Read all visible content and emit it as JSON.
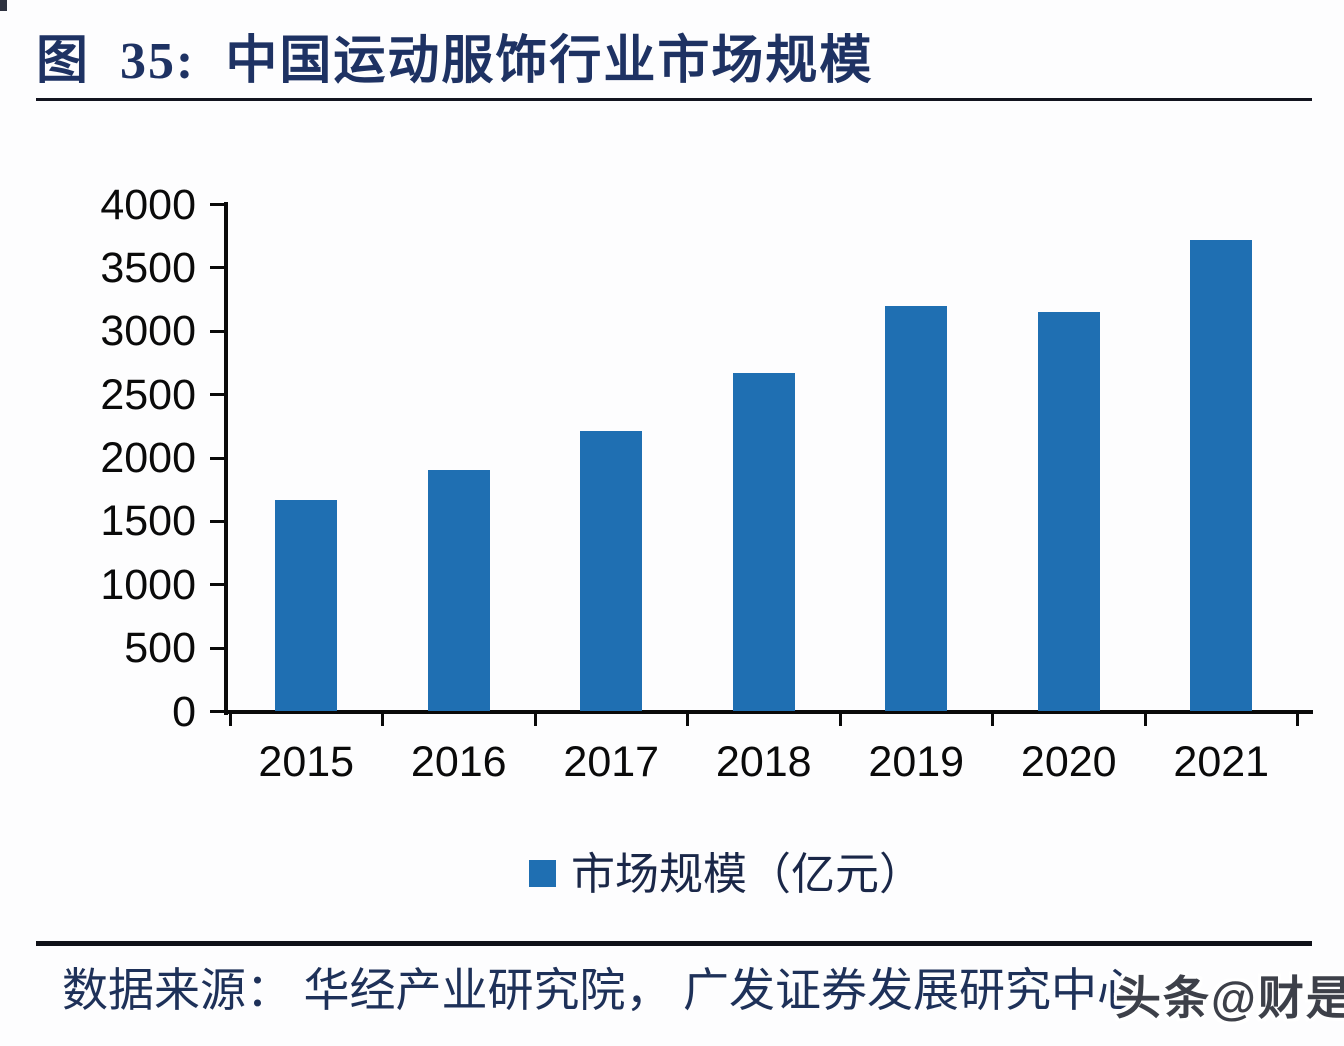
{
  "header": {
    "title": "图  35:  中国运动服饰行业市场规模"
  },
  "legend": {
    "label": "市场规模（亿元）"
  },
  "footer": {
    "source": "数据来源： 华经产业研究院， 广发证券发展研究中心",
    "watermark": "头条@财是"
  },
  "colors": {
    "bar": "#1f6fb2",
    "title_navy": "#1e3263",
    "axis": "#0a0a0a",
    "watermark_gray": "#3d4049"
  },
  "chart_data": {
    "type": "bar",
    "title": "中国运动服饰行业市场规模",
    "categories": [
      "2015",
      "2016",
      "2017",
      "2018",
      "2019",
      "2020",
      "2021"
    ],
    "series": [
      {
        "name": "市场规模（亿元）",
        "values": [
          1669,
          1905,
          2216,
          2669,
          3199,
          3150,
          3718
        ]
      }
    ],
    "xlabel": "",
    "ylabel": "",
    "ylim": [
      0,
      4000
    ],
    "yticks": [
      0,
      500,
      1000,
      1500,
      2000,
      2500,
      3000,
      3500,
      4000
    ],
    "grid": false,
    "legend_position": "bottom"
  }
}
